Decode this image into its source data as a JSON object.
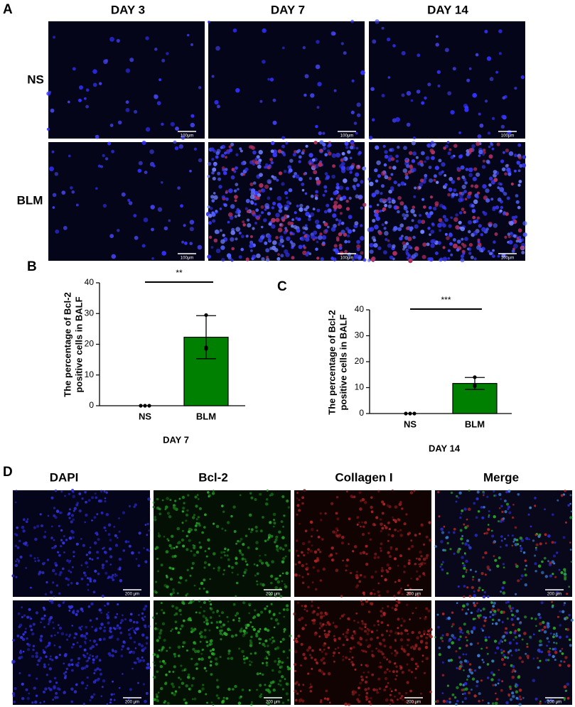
{
  "panel_labels": [
    "A",
    "B",
    "C",
    "D"
  ],
  "panel_a": {
    "columns": [
      "DAY 3",
      "DAY 7",
      "DAY 14"
    ],
    "rows": [
      "NS",
      "BLM"
    ],
    "scale_bar": "100μm"
  },
  "chart_data": [
    {
      "type": "bar",
      "ylabel": [
        "The percentage of Bcl-2",
        "positive cells in BALF"
      ],
      "xlabel": "DAY 7",
      "categories": [
        "NS",
        "BLM"
      ],
      "values": [
        0,
        22.3
      ],
      "errors": [
        0,
        7
      ],
      "points": [
        [
          0,
          0,
          0
        ],
        [
          29.5,
          18.5,
          19
        ]
      ],
      "significance": "**",
      "color": "#008000",
      "ylim": [
        0,
        40
      ],
      "yticks": [
        0,
        10,
        20,
        30,
        40
      ]
    },
    {
      "type": "bar",
      "ylabel": [
        "The percentage of Bcl-2",
        "positive cells in BALF"
      ],
      "xlabel": "DAY 14",
      "categories": [
        "NS",
        "BLM"
      ],
      "values": [
        0,
        11.6
      ],
      "errors": [
        0,
        2.3
      ],
      "points": [
        [
          0,
          0,
          0
        ],
        [
          14,
          11,
          10.5
        ]
      ],
      "significance": "***",
      "color": "#008000",
      "ylim": [
        0,
        40
      ],
      "yticks": [
        0,
        10,
        20,
        30,
        40
      ]
    }
  ],
  "panel_d": {
    "columns": [
      "DAPI",
      "Bcl-2",
      "Collagen I",
      "Merge"
    ],
    "scale_bar": "200 μm"
  }
}
